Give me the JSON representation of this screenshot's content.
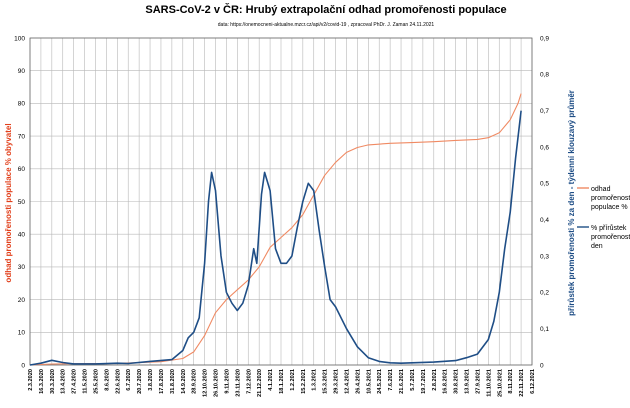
{
  "chart_data": {
    "type": "line",
    "title": "SARS-CoV-2 v ČR: Hrubý extrapolační odhad promořenosti populace",
    "subtitle": "data: https://onemocneni-aktualne.mzcr.cz/api/v2/covid-19 , zpracoval PhDr. J. Zaman 24.11.2021",
    "ylabel": "odhad promořenosti populace % obyvatel",
    "y2label": "přírůstek promořenosti % za den - týdenní klouzavý průměr",
    "ylim": [
      0,
      100
    ],
    "y2lim": [
      0,
      0.9
    ],
    "yticks": [
      "0",
      "10",
      "20",
      "30",
      "40",
      "50",
      "60",
      "70",
      "80",
      "90",
      "100"
    ],
    "y2ticks": [
      "0",
      "0,1",
      "0,2",
      "0,3",
      "0,4",
      "0,5",
      "0,6",
      "0,7",
      "0,8",
      "0,9"
    ],
    "x_ticks": [
      "2.3.2020",
      "16.3.2020",
      "30.3.2020",
      "13.4.2020",
      "27.4.2020",
      "11.5.2020",
      "25.5.2020",
      "8.6.2020",
      "22.6.2020",
      "6.7.2020",
      "20.7.2020",
      "3.8.2020",
      "17.8.2020",
      "31.8.2020",
      "14.9.2020",
      "28.9.2020",
      "12.10.2020",
      "26.10.2020",
      "9.11.2020",
      "23.11.2020",
      "7.12.2020",
      "21.12.2020",
      "4.1.2021",
      "18.1.2021",
      "1.2.2021",
      "15.2.2021",
      "1.3.2021",
      "15.3.2021",
      "29.3.2021",
      "12.4.2021",
      "26.4.2021",
      "10.5.2021",
      "24.5.2021",
      "7.6.2021",
      "21.6.2021",
      "5.7.2021",
      "19.7.2021",
      "2.8.2021",
      "16.8.2021",
      "30.8.2021",
      "13.9.2021",
      "27.9.2021",
      "11.10.2021",
      "25.10.2021",
      "8.11.2021",
      "22.11.2021",
      "6.12.2021"
    ],
    "series": [
      {
        "name": "odhad promořenosti populace %",
        "axis": "left",
        "color": "#f08a63",
        "points": [
          [
            "2.3.2020",
            0
          ],
          [
            "30.3.2020",
            0.3
          ],
          [
            "27.4.2020",
            0.4
          ],
          [
            "22.6.2020",
            0.5
          ],
          [
            "17.8.2020",
            1
          ],
          [
            "14.9.2020",
            2
          ],
          [
            "28.9.2020",
            4
          ],
          [
            "12.10.2020",
            9
          ],
          [
            "26.10.2020",
            16
          ],
          [
            "9.11.2020",
            20
          ],
          [
            "23.11.2020",
            23
          ],
          [
            "7.12.2020",
            26
          ],
          [
            "21.12.2020",
            30
          ],
          [
            "4.1.2021",
            36
          ],
          [
            "18.1.2021",
            39
          ],
          [
            "1.2.2021",
            42
          ],
          [
            "15.2.2021",
            46
          ],
          [
            "1.3.2021",
            52
          ],
          [
            "15.3.2021",
            58
          ],
          [
            "29.3.2021",
            62
          ],
          [
            "12.4.2021",
            65
          ],
          [
            "26.4.2021",
            66.5
          ],
          [
            "10.5.2021",
            67.3
          ],
          [
            "7.6.2021",
            67.8
          ],
          [
            "5.7.2021",
            68
          ],
          [
            "2.8.2021",
            68.3
          ],
          [
            "30.8.2021",
            68.7
          ],
          [
            "27.9.2021",
            69
          ],
          [
            "11.10.2021",
            69.5
          ],
          [
            "25.10.2021",
            71
          ],
          [
            "8.11.2021",
            75
          ],
          [
            "18.11.2021",
            80
          ],
          [
            "22.11.2021",
            83
          ]
        ]
      },
      {
        "name": "% přírůstek promořenosti za den",
        "axis": "right",
        "color": "#1f4e86",
        "points": [
          [
            "2.3.2020",
            0
          ],
          [
            "16.3.2020",
            0.005
          ],
          [
            "30.3.2020",
            0.013
          ],
          [
            "13.4.2020",
            0.007
          ],
          [
            "27.4.2020",
            0.003
          ],
          [
            "25.5.2020",
            0.003
          ],
          [
            "22.6.2020",
            0.005
          ],
          [
            "6.7.2020",
            0.004
          ],
          [
            "3.8.2020",
            0.01
          ],
          [
            "31.8.2020",
            0.015
          ],
          [
            "14.9.2020",
            0.04
          ],
          [
            "21.9.2020",
            0.075
          ],
          [
            "28.9.2020",
            0.09
          ],
          [
            "5.10.2020",
            0.13
          ],
          [
            "12.10.2020",
            0.28
          ],
          [
            "17.10.2020",
            0.45
          ],
          [
            "21.10.2020",
            0.53
          ],
          [
            "26.10.2020",
            0.48
          ],
          [
            "2.11.2020",
            0.3
          ],
          [
            "9.11.2020",
            0.2
          ],
          [
            "16.11.2020",
            0.17
          ],
          [
            "23.11.2020",
            0.15
          ],
          [
            "30.11.2020",
            0.17
          ],
          [
            "7.12.2020",
            0.22
          ],
          [
            "14.12.2020",
            0.32
          ],
          [
            "18.12.2020",
            0.28
          ],
          [
            "24.12.2020",
            0.47
          ],
          [
            "28.12.2020",
            0.53
          ],
          [
            "4.1.2021",
            0.48
          ],
          [
            "11.1.2021",
            0.32
          ],
          [
            "18.1.2021",
            0.28
          ],
          [
            "25.1.2021",
            0.28
          ],
          [
            "1.2.2021",
            0.3
          ],
          [
            "8.2.2021",
            0.38
          ],
          [
            "15.2.2021",
            0.45
          ],
          [
            "22.2.2021",
            0.5
          ],
          [
            "1.3.2021",
            0.48
          ],
          [
            "8.3.2021",
            0.37
          ],
          [
            "15.3.2021",
            0.27
          ],
          [
            "22.3.2021",
            0.18
          ],
          [
            "29.3.2021",
            0.16
          ],
          [
            "12.4.2021",
            0.1
          ],
          [
            "26.4.2021",
            0.05
          ],
          [
            "10.5.2021",
            0.02
          ],
          [
            "24.5.2021",
            0.01
          ],
          [
            "7.6.2021",
            0.006
          ],
          [
            "21.6.2021",
            0.005
          ],
          [
            "5.7.2021",
            0.006
          ],
          [
            "2.8.2021",
            0.008
          ],
          [
            "30.8.2021",
            0.012
          ],
          [
            "13.9.2021",
            0.02
          ],
          [
            "27.9.2021",
            0.03
          ],
          [
            "11.10.2021",
            0.07
          ],
          [
            "18.10.2021",
            0.12
          ],
          [
            "25.10.2021",
            0.2
          ],
          [
            "1.11.2021",
            0.32
          ],
          [
            "8.11.2021",
            0.42
          ],
          [
            "15.11.2021",
            0.57
          ],
          [
            "22.11.2021",
            0.7
          ]
        ]
      }
    ],
    "legend_position": "right",
    "legend_items": [
      "odhad promořenosti populace %",
      "% přírůstek promořenosti za den"
    ],
    "grid": true
  }
}
